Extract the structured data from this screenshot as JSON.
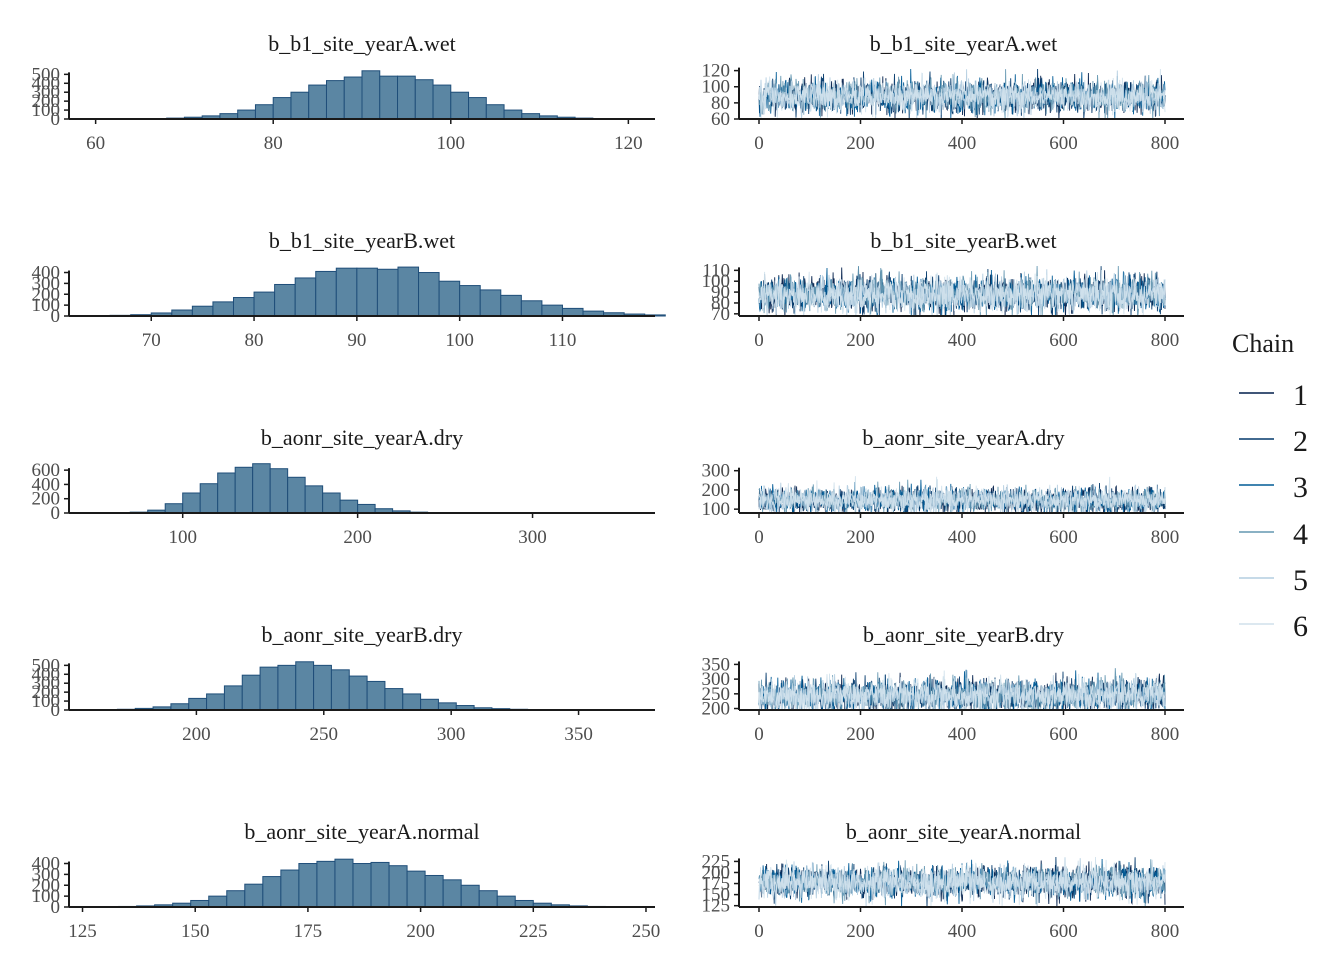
{
  "legend": {
    "title": "Chain",
    "entries": [
      {
        "label": "1",
        "color": "#011f4b"
      },
      {
        "label": "2",
        "color": "#03396c"
      },
      {
        "label": "3",
        "color": "#005b96"
      },
      {
        "label": "4",
        "color": "#6497b1"
      },
      {
        "label": "5",
        "color": "#b3cde0"
      },
      {
        "label": "6",
        "color": "#d1e1ec"
      }
    ]
  },
  "colors": {
    "hist_fill": "#5b86a3",
    "hist_edge": "#1f4e79",
    "axis": "#1a1a1a"
  },
  "chart_data": [
    {
      "type": "bar",
      "kind": "histogram",
      "title": "b_b1_site_yearA.wet",
      "xlim": [
        57,
        123
      ],
      "ylim": [
        0,
        560
      ],
      "xticks": [
        60,
        80,
        100,
        120
      ],
      "yticks": [
        0,
        100,
        200,
        300,
        400,
        500
      ],
      "bin_start": 60,
      "bin_width": 2,
      "counts": [
        0,
        2,
        3,
        5,
        10,
        20,
        35,
        60,
        100,
        160,
        240,
        300,
        380,
        430,
        470,
        540,
        480,
        480,
        440,
        380,
        300,
        240,
        160,
        100,
        60,
        35,
        20,
        10,
        5,
        3,
        2
      ]
    },
    {
      "type": "line",
      "kind": "trace",
      "title": "b_b1_site_yearA.wet",
      "xlim": [
        0,
        800
      ],
      "ylim": [
        60,
        122
      ],
      "xticks": [
        0,
        200,
        400,
        600,
        800
      ],
      "yticks": [
        60,
        80,
        100,
        120
      ],
      "mean": 88,
      "sd": 10,
      "seed": 11
    },
    {
      "type": "bar",
      "kind": "histogram",
      "title": "b_b1_site_yearB.wet",
      "xlim": [
        62,
        119
      ],
      "ylim": [
        0,
        460
      ],
      "xticks": [
        70,
        80,
        90,
        100,
        110
      ],
      "yticks": [
        0,
        100,
        200,
        300,
        400
      ],
      "bin_start": 62,
      "bin_width": 2,
      "counts": [
        1,
        3,
        6,
        12,
        28,
        55,
        90,
        130,
        170,
        220,
        290,
        350,
        410,
        440,
        440,
        430,
        450,
        400,
        320,
        280,
        240,
        190,
        140,
        100,
        70,
        45,
        30,
        18,
        10,
        5
      ]
    },
    {
      "type": "line",
      "kind": "trace",
      "title": "b_b1_site_yearB.wet",
      "xlim": [
        0,
        800
      ],
      "ylim": [
        68,
        114
      ],
      "xticks": [
        0,
        200,
        400,
        600,
        800
      ],
      "yticks": [
        70,
        80,
        90,
        100,
        110
      ],
      "mean": 88,
      "sd": 8,
      "seed": 23
    },
    {
      "type": "bar",
      "kind": "histogram",
      "title": "b_aonr_site_yearA.dry",
      "xlim": [
        35,
        370
      ],
      "ylim": [
        0,
        700
      ],
      "xticks": [
        100,
        200,
        300
      ],
      "yticks": [
        0,
        200,
        400,
        600
      ],
      "bin_start": 40,
      "bin_width": 10,
      "counts": [
        0,
        2,
        5,
        12,
        40,
        130,
        280,
        410,
        560,
        640,
        690,
        620,
        500,
        380,
        280,
        180,
        120,
        60,
        30,
        12,
        6,
        3,
        1,
        1,
        0,
        0,
        0,
        0,
        0,
        0,
        0,
        0
      ]
    },
    {
      "type": "line",
      "kind": "trace",
      "title": "b_aonr_site_yearA.dry",
      "xlim": [
        0,
        800
      ],
      "ylim": [
        80,
        340
      ],
      "xticks": [
        0,
        200,
        400,
        600,
        800
      ],
      "yticks": [
        100,
        200,
        300
      ],
      "mean": 145,
      "sd": 32,
      "seed": 37
    },
    {
      "type": "bar",
      "kind": "histogram",
      "title": "b_aonr_site_yearB.dry",
      "xlim": [
        150,
        380
      ],
      "ylim": [
        0,
        560
      ],
      "xticks": [
        200,
        250,
        300,
        350
      ],
      "yticks": [
        0,
        100,
        200,
        300,
        400,
        500
      ],
      "bin_start": 155,
      "bin_width": 7,
      "counts": [
        1,
        3,
        8,
        18,
        35,
        70,
        130,
        180,
        270,
        390,
        480,
        500,
        540,
        500,
        450,
        380,
        320,
        240,
        180,
        120,
        80,
        50,
        25,
        15,
        8,
        4,
        2,
        1,
        1,
        0,
        0,
        0
      ]
    },
    {
      "type": "line",
      "kind": "trace",
      "title": "b_aonr_site_yearB.dry",
      "xlim": [
        0,
        800
      ],
      "ylim": [
        195,
        365
      ],
      "xticks": [
        0,
        200,
        400,
        600,
        800
      ],
      "yticks": [
        200,
        250,
        300,
        350
      ],
      "mean": 245,
      "sd": 28,
      "seed": 53
    },
    {
      "type": "bar",
      "kind": "histogram",
      "title": "b_aonr_site_yearA.normal",
      "xlim": [
        122,
        252
      ],
      "ylim": [
        0,
        460
      ],
      "xticks": [
        125,
        150,
        175,
        200,
        225,
        250
      ],
      "yticks": [
        0,
        100,
        200,
        300,
        400
      ],
      "bin_start": 125,
      "bin_width": 4,
      "counts": [
        0,
        2,
        5,
        10,
        20,
        35,
        60,
        100,
        150,
        210,
        280,
        340,
        400,
        420,
        440,
        400,
        410,
        380,
        330,
        290,
        250,
        200,
        150,
        100,
        60,
        35,
        20,
        10,
        5,
        2,
        1,
        0
      ]
    },
    {
      "type": "line",
      "kind": "trace",
      "title": "b_aonr_site_yearA.normal",
      "xlim": [
        0,
        800
      ],
      "ylim": [
        122,
        235
      ],
      "xticks": [
        0,
        200,
        400,
        600,
        800
      ],
      "yticks": [
        125,
        150,
        175,
        200,
        225
      ],
      "mean": 178,
      "sd": 18,
      "seed": 71
    }
  ]
}
